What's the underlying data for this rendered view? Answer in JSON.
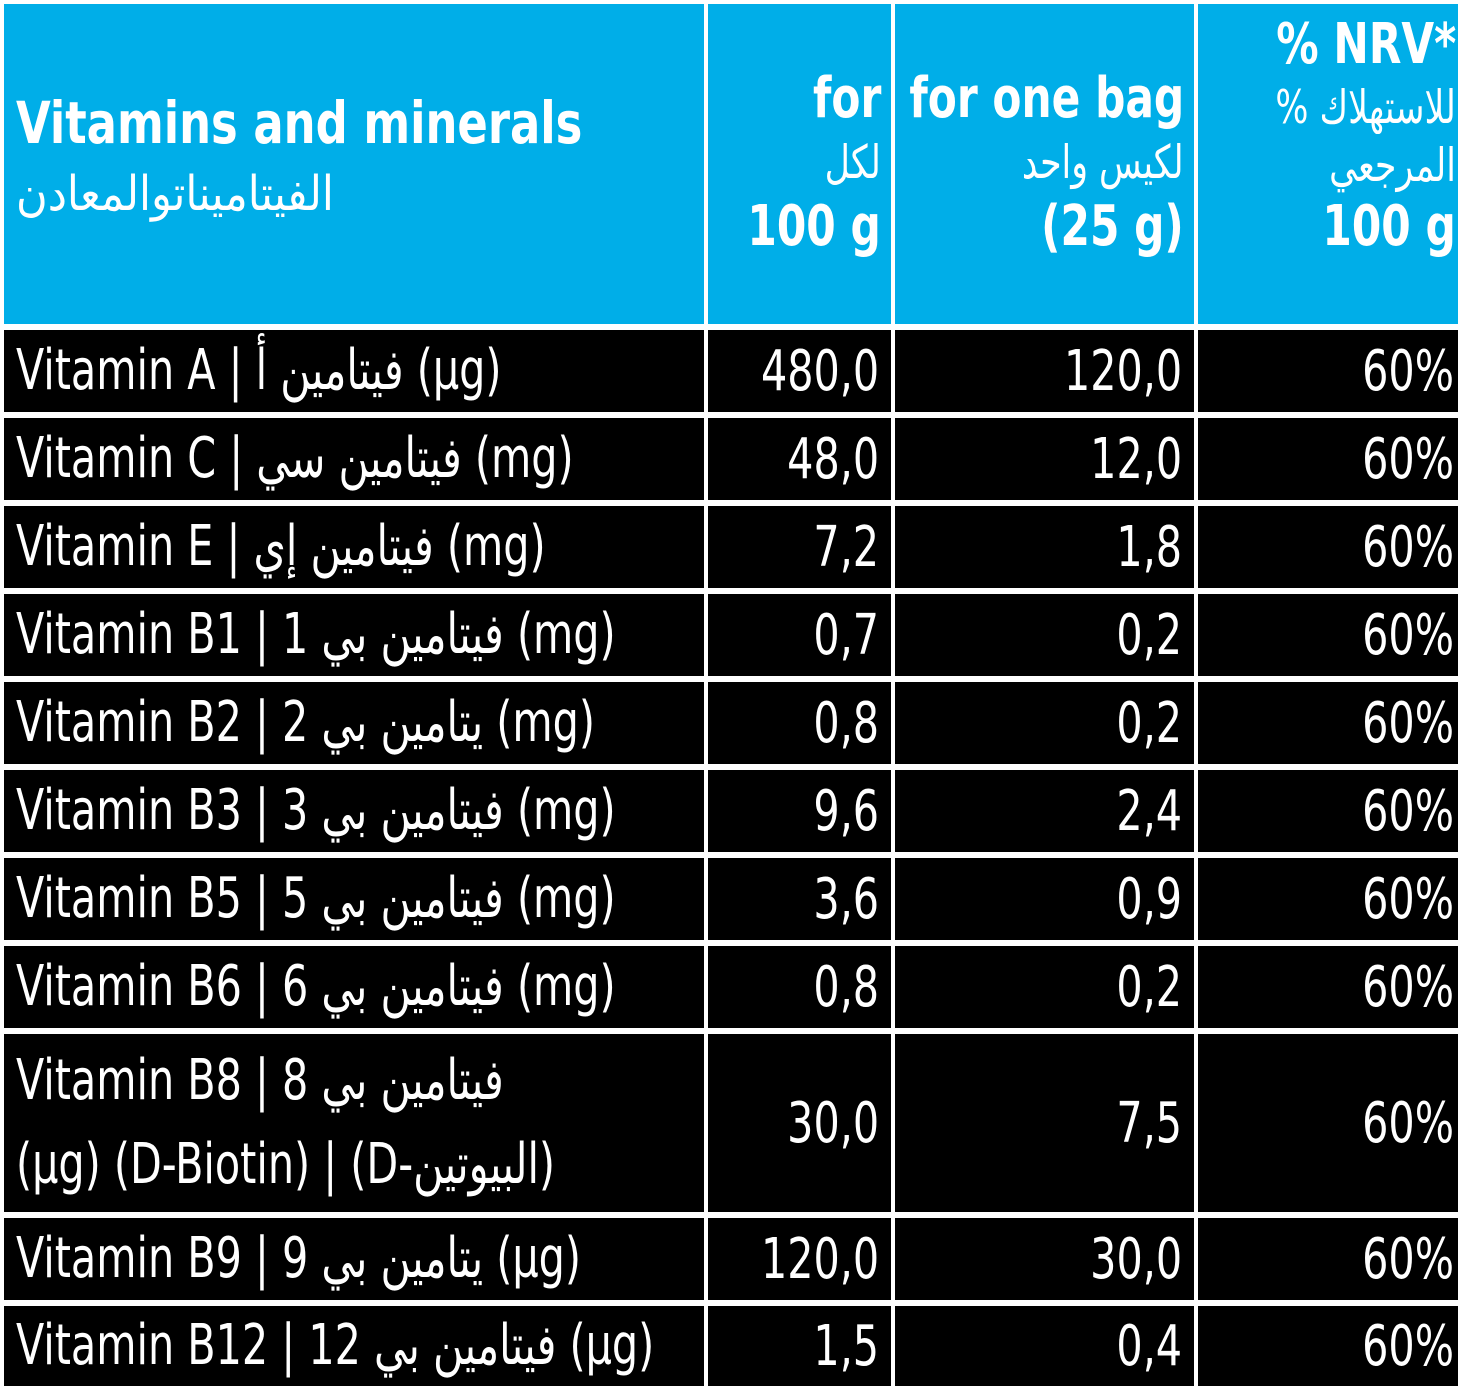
{
  "header": {
    "name_en": "Vitamins and minerals",
    "name_ar": "الفيتاميناتوالمعادن",
    "col_100g": {
      "l1": "for",
      "l2": "لكل",
      "l3": "100 g"
    },
    "col_bag": {
      "l1": "for one bag",
      "l2": "لكيس واحد",
      "l3": "(25 g)"
    },
    "col_nrv": {
      "l1": "% NRV*",
      "l2": "% للاستهلاك",
      "l3": "المرجعي",
      "l4": "100 g"
    }
  },
  "rows": [
    {
      "label": "Vitamin A | فيتامين أ (µg)",
      "per100": "480,0",
      "perbag": "120,0",
      "nrv": "60%"
    },
    {
      "label": "Vitamin C | فيتامين سي (mg)",
      "per100": "48,0",
      "perbag": "12,0",
      "nrv": "60%"
    },
    {
      "label": "Vitamin E | فيتامين إي (mg)",
      "per100": "7,2",
      "perbag": "1,8",
      "nrv": "60%"
    },
    {
      "label": "Vitamin B1 | فيتامين بي 1 (mg)",
      "per100": "0,7",
      "perbag": "0,2",
      "nrv": "60%"
    },
    {
      "label": "Vitamin B2 | يتامين بي 2 (mg)",
      "per100": "0,8",
      "perbag": "0,2",
      "nrv": "60%"
    },
    {
      "label": "Vitamin B3 | فيتامين بي 3 (mg)",
      "per100": "9,6",
      "perbag": "2,4",
      "nrv": "60%"
    },
    {
      "label": "Vitamin B5 | فيتامين بي 5 (mg)",
      "per100": "3,6",
      "perbag": "0,9",
      "nrv": "60%"
    },
    {
      "label": "Vitamin B6 | فيتامين بي 6 (mg)",
      "per100": "0,8",
      "perbag": "0,2",
      "nrv": "60%"
    },
    {
      "label": "Vitamin B8 | فيتامين بي 8 (µg) (D-Biotin) | (D-البيوتين)",
      "per100": "30,0",
      "perbag": "7,5",
      "nrv": "60%"
    },
    {
      "label": "Vitamin B9 | يتامين بي 9 (µg)",
      "per100": "120,0",
      "perbag": "30,0",
      "nrv": "60%"
    },
    {
      "label": "Vitamin B12 | فيتامين بي 12 (µg)",
      "per100": "1,5",
      "perbag": "0,4",
      "nrv": "60%"
    }
  ]
}
